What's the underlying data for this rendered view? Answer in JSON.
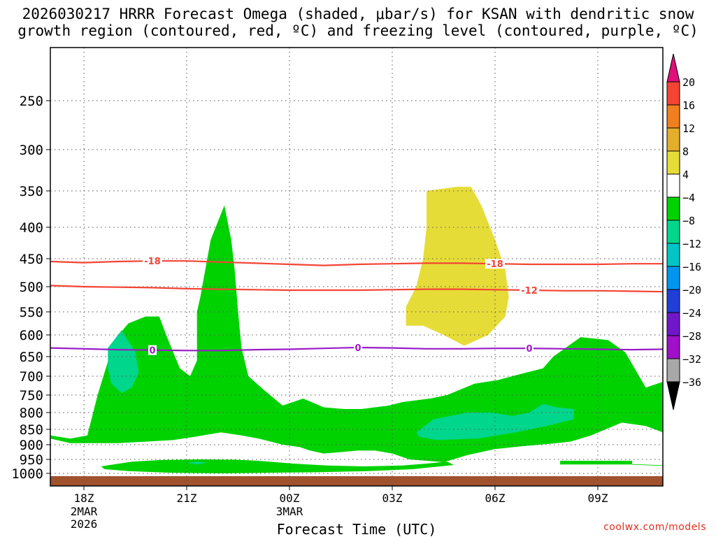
{
  "title_line1": "2026030217 HRRR Forecast Omega (shaded, μbar/s) for KSAN with dendritic snow",
  "title_line2": "growth region (contoured, red, ºC) and freezing level (contoured, purple, ºC)",
  "watermark": "coolwx.com/models",
  "chart_data": {
    "type": "heatmap",
    "title": "2026030217 HRRR Forecast Omega (shaded, μbar/s) for KSAN with dendritic snow growth region (contoured, red, ºC) and freezing level (contoured, purple, ºC)",
    "xlabel": "Forecast Time (UTC)",
    "ylabel": "",
    "x_ticks": [
      {
        "hour": 18,
        "label": "18Z",
        "sub1": "2MAR",
        "sub2": "2026"
      },
      {
        "hour": 21,
        "label": "21Z",
        "sub1": "",
        "sub2": ""
      },
      {
        "hour": 24,
        "label": "00Z",
        "sub1": "3MAR",
        "sub2": ""
      },
      {
        "hour": 27,
        "label": "03Z",
        "sub1": "",
        "sub2": ""
      },
      {
        "hour": 30,
        "label": "06Z",
        "sub1": "",
        "sub2": ""
      },
      {
        "hour": 33,
        "label": "09Z",
        "sub1": "",
        "sub2": ""
      }
    ],
    "xlim_hours": [
      17,
      35
    ],
    "y_ticks": [
      250,
      300,
      350,
      400,
      450,
      500,
      550,
      600,
      650,
      700,
      750,
      800,
      850,
      900,
      950,
      1000
    ],
    "ylim_hpa": [
      1025,
      200
    ],
    "grid": true,
    "colorbar": {
      "levels": [
        {
          "label": "20",
          "color": "#e0107a"
        },
        {
          "label": "16",
          "color": "#f44434"
        },
        {
          "label": "12",
          "color": "#f07f1f"
        },
        {
          "label": "8",
          "color": "#e4ae2d"
        },
        {
          "label": "4",
          "color": "#e6dc37"
        },
        {
          "label": "−4",
          "color": "#ffffff"
        },
        {
          "label": "−8",
          "color": "#00d200"
        },
        {
          "label": "−12",
          "color": "#00d68c"
        },
        {
          "label": "−16",
          "color": "#00c5c5"
        },
        {
          "label": "−20",
          "color": "#0096f0"
        },
        {
          "label": "−24",
          "color": "#1f3fd7"
        },
        {
          "label": "−28",
          "color": "#6f17c9"
        },
        {
          "label": "−32",
          "color": "#a010c8"
        },
        {
          "label": "−36",
          "color": "#a8a8a8"
        }
      ],
      "extend_low_color": "#000000",
      "extend_high_color": "#e0107a"
    },
    "contours": [
      {
        "kind": "dgz",
        "color": "#f44434",
        "labels": [
          {
            "text": "-18",
            "hour": 20.0
          },
          {
            "text": "-18",
            "hour": 30.0
          }
        ],
        "points": [
          [
            17,
            455
          ],
          [
            18,
            457
          ],
          [
            19,
            455
          ],
          [
            20,
            454
          ],
          [
            21,
            454
          ],
          [
            22,
            456
          ],
          [
            23,
            458
          ],
          [
            24,
            460
          ],
          [
            25,
            462
          ],
          [
            26,
            460
          ],
          [
            27,
            459
          ],
          [
            28,
            458
          ],
          [
            29,
            458
          ],
          [
            30,
            459
          ],
          [
            31,
            460
          ],
          [
            32,
            460
          ],
          [
            33,
            460
          ],
          [
            34,
            459
          ],
          [
            35,
            459
          ]
        ]
      },
      {
        "kind": "dgz",
        "color": "#f44434",
        "labels": [
          {
            "text": "-12",
            "hour": 31.0
          }
        ],
        "points": [
          [
            17,
            498
          ],
          [
            18,
            500
          ],
          [
            19,
            501
          ],
          [
            20,
            502
          ],
          [
            21,
            504
          ],
          [
            22,
            505
          ],
          [
            23,
            506
          ],
          [
            24,
            507
          ],
          [
            25,
            507
          ],
          [
            26,
            507
          ],
          [
            27,
            506
          ],
          [
            28,
            505
          ],
          [
            29,
            505
          ],
          [
            30,
            506
          ],
          [
            31,
            507
          ],
          [
            32,
            508
          ],
          [
            33,
            508
          ],
          [
            34,
            509
          ],
          [
            35,
            510
          ]
        ]
      },
      {
        "kind": "freezing",
        "color": "#9a1bc8",
        "labels": [
          {
            "text": "0",
            "hour": 20.0
          },
          {
            "text": "0",
            "hour": 26.0
          },
          {
            "text": "0",
            "hour": 31.0
          }
        ],
        "points": [
          [
            17,
            630
          ],
          [
            18,
            632
          ],
          [
            19,
            634
          ],
          [
            20,
            635
          ],
          [
            21,
            636
          ],
          [
            22,
            636
          ],
          [
            23,
            634
          ],
          [
            24,
            633
          ],
          [
            25,
            631
          ],
          [
            26,
            629
          ],
          [
            27,
            630
          ],
          [
            28,
            632
          ],
          [
            29,
            632
          ],
          [
            30,
            631
          ],
          [
            31,
            631
          ],
          [
            32,
            632
          ],
          [
            33,
            633
          ],
          [
            34,
            634
          ],
          [
            35,
            633
          ]
        ]
      }
    ],
    "omega_regions": [
      {
        "value_range": "-8 to -4",
        "color": "#00d200",
        "points": [
          [
            17.0,
            870
          ],
          [
            17.6,
            880
          ],
          [
            18.1,
            870
          ],
          [
            18.4,
            750
          ],
          [
            18.9,
            610
          ],
          [
            19.3,
            575
          ],
          [
            19.8,
            560
          ],
          [
            20.2,
            560
          ],
          [
            20.4,
            600
          ],
          [
            20.8,
            680
          ],
          [
            21.1,
            700
          ],
          [
            21.3,
            660
          ],
          [
            21.3,
            550
          ],
          [
            21.4,
            520
          ],
          [
            21.7,
            420
          ],
          [
            22.1,
            370
          ],
          [
            22.3,
            420
          ],
          [
            22.4,
            470
          ],
          [
            22.5,
            550
          ],
          [
            22.6,
            630
          ],
          [
            22.8,
            700
          ],
          [
            23.3,
            740
          ],
          [
            23.8,
            780
          ],
          [
            24.4,
            760
          ],
          [
            25.0,
            785
          ],
          [
            25.6,
            790
          ],
          [
            26.1,
            790
          ],
          [
            26.9,
            780
          ],
          [
            27.3,
            770
          ],
          [
            28.1,
            760
          ],
          [
            28.6,
            750
          ],
          [
            29.4,
            720
          ],
          [
            30.1,
            710
          ],
          [
            30.5,
            700
          ],
          [
            31.4,
            680
          ],
          [
            31.7,
            650
          ],
          [
            32.5,
            605
          ],
          [
            33.3,
            612
          ],
          [
            33.8,
            640
          ],
          [
            34.4,
            730
          ],
          [
            35.0,
            715
          ],
          [
            35.0,
            860
          ],
          [
            34.4,
            840
          ],
          [
            33.7,
            830
          ],
          [
            32.8,
            870
          ],
          [
            32.2,
            890
          ],
          [
            31.8,
            895
          ],
          [
            31.3,
            900
          ],
          [
            30.8,
            905
          ],
          [
            30.0,
            915
          ],
          [
            29.2,
            935
          ],
          [
            28.5,
            960
          ],
          [
            27.5,
            950
          ],
          [
            27.0,
            930
          ],
          [
            26.5,
            920
          ],
          [
            26.0,
            920
          ],
          [
            25.5,
            925
          ],
          [
            25.0,
            930
          ],
          [
            24.6,
            920
          ],
          [
            24.3,
            908
          ],
          [
            23.8,
            900
          ],
          [
            23.1,
            880
          ],
          [
            22.6,
            870
          ],
          [
            22.0,
            860
          ],
          [
            21.2,
            875
          ],
          [
            20.6,
            885
          ],
          [
            19.8,
            890
          ],
          [
            19.0,
            895
          ],
          [
            18.2,
            895
          ],
          [
            17.6,
            895
          ],
          [
            17.0,
            880
          ]
        ]
      },
      {
        "value_range": "-8 to -4",
        "color": "#00d200",
        "points": [
          [
            18.5,
            975
          ],
          [
            19.4,
            958
          ],
          [
            20.3,
            952
          ],
          [
            21.4,
            950
          ],
          [
            22.4,
            951
          ],
          [
            23.1,
            955
          ],
          [
            24.1,
            965
          ],
          [
            25.1,
            972
          ],
          [
            26.2,
            975
          ],
          [
            27.3,
            972
          ],
          [
            28.0,
            965
          ],
          [
            28.6,
            958
          ],
          [
            28.8,
            970
          ],
          [
            27.6,
            985
          ],
          [
            26.3,
            992
          ],
          [
            24.8,
            996
          ],
          [
            23.3,
            998
          ],
          [
            22.0,
            1000
          ],
          [
            20.6,
            998
          ],
          [
            19.3,
            992
          ],
          [
            18.6,
            985
          ]
        ]
      },
      {
        "value_range": "-8 to -4",
        "color": "#00d200",
        "points": [
          [
            31.9,
            955
          ],
          [
            34.0,
            955
          ],
          [
            34.0,
            968
          ],
          [
            31.9,
            968
          ]
        ]
      },
      {
        "value_range": "-8 to -4",
        "color": "#00d200",
        "points": [
          [
            34.0,
            967
          ],
          [
            35.0,
            971
          ],
          [
            35.0,
            973
          ],
          [
            34.0,
            969
          ]
        ]
      },
      {
        "value_range": "-12 to -8",
        "color": "#00d68c",
        "points": [
          [
            18.7,
            630
          ],
          [
            19.1,
            590
          ],
          [
            19.5,
            640
          ],
          [
            19.6,
            690
          ],
          [
            19.4,
            730
          ],
          [
            19.1,
            745
          ],
          [
            18.8,
            720
          ],
          [
            18.7,
            680
          ]
        ]
      },
      {
        "value_range": "-12 to -8",
        "color": "#00d68c",
        "points": [
          [
            21.0,
            962
          ],
          [
            21.3,
            958
          ],
          [
            21.6,
            962
          ],
          [
            21.3,
            968
          ]
        ]
      },
      {
        "value_range": "-12 to -8",
        "color": "#00d68c",
        "points": [
          [
            27.7,
            860
          ],
          [
            28.2,
            820
          ],
          [
            29.2,
            800
          ],
          [
            29.9,
            800
          ],
          [
            30.5,
            810
          ],
          [
            31.0,
            800
          ],
          [
            31.4,
            775
          ],
          [
            31.8,
            785
          ],
          [
            32.3,
            790
          ],
          [
            32.3,
            820
          ],
          [
            31.5,
            840
          ],
          [
            30.6,
            860
          ],
          [
            29.5,
            880
          ],
          [
            28.3,
            885
          ],
          [
            27.8,
            875
          ]
        ]
      },
      {
        "value_range": "4 to 8",
        "color": "#e6dc37",
        "points": [
          [
            28.0,
            350
          ],
          [
            28.9,
            345
          ],
          [
            29.3,
            345
          ],
          [
            29.6,
            370
          ],
          [
            30.0,
            420
          ],
          [
            30.3,
            470
          ],
          [
            30.4,
            520
          ],
          [
            30.3,
            560
          ],
          [
            29.8,
            600
          ],
          [
            29.1,
            625
          ],
          [
            28.5,
            600
          ],
          [
            27.9,
            580
          ],
          [
            27.4,
            580
          ],
          [
            27.4,
            540
          ],
          [
            27.7,
            500
          ],
          [
            27.9,
            450
          ],
          [
            28.0,
            400
          ]
        ]
      }
    ]
  }
}
